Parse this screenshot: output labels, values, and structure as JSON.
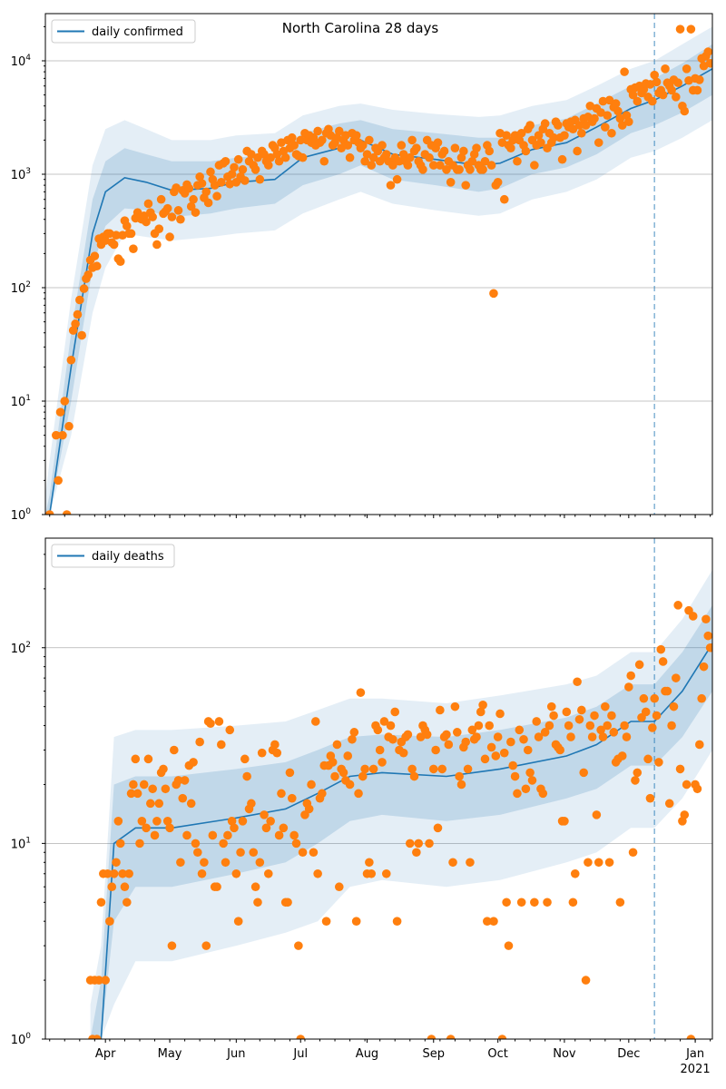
{
  "chart_data": [
    {
      "type": "scatter+line",
      "title": "North Carolina 28 days",
      "legend": {
        "label": "daily confirmed",
        "placement": "top-left"
      },
      "x_unit": "days since 2020-03-01",
      "xlim": [
        3,
        314
      ],
      "ylim_log10": [
        0,
        4.416
      ],
      "yscale": "log",
      "y_ticks": [
        {
          "base": "10",
          "exp": "0",
          "value": 1
        },
        {
          "base": "10",
          "exp": "1",
          "value": 10
        },
        {
          "base": "10",
          "exp": "2",
          "value": 100
        },
        {
          "base": "10",
          "exp": "3",
          "value": 1000
        },
        {
          "base": "10",
          "exp": "4",
          "value": 10000
        }
      ],
      "grid": "horizontal",
      "forecast_start_day": 287,
      "points": {
        "start_day": 5,
        "values": [
          1,
          null,
          null,
          5,
          2,
          8,
          5,
          10,
          1,
          6,
          23,
          42,
          48,
          58,
          78,
          38,
          98,
          120,
          130,
          175,
          150,
          190,
          155,
          270,
          240,
          280,
          260,
          300,
          300,
          250,
          240,
          290,
          180,
          170,
          290,
          390,
          350,
          300,
          300,
          220,
          410,
          460,
          410,
          400,
          430,
          380,
          550,
          460,
          420,
          300,
          240,
          330,
          600,
          450,
          470,
          500,
          280,
          420,
          700,
          760,
          480,
          400,
          720,
          680,
          810,
          750,
          520,
          600,
          460,
          800,
          950,
          830,
          620,
          700,
          560,
          1050,
          900,
          800,
          640,
          1200,
          850,
          1250,
          1300,
          950,
          820,
          1000,
          1150,
          850,
          1350,
          950,
          1100,
          880,
          1600,
          1300,
          1500,
          1200,
          1100,
          1400,
          900,
          1600,
          1500,
          1300,
          1200,
          1400,
          1800,
          1700,
          1500,
          1300,
          1900,
          1600,
          1400,
          2000,
          1700,
          2100,
          1800,
          1500,
          1450,
          2000,
          1400,
          2300,
          2000,
          2200,
          1900,
          2100,
          1800,
          2400,
          1900,
          2000,
          1300,
          2300,
          2500,
          2200,
          1800,
          1900,
          2100,
          2400,
          1700,
          2000,
          2200,
          1800,
          1400,
          2300,
          2000,
          2200,
          1900,
          1700,
          1800,
          1300,
          1500,
          2000,
          1200,
          1400,
          1700,
          1600,
          1300,
          1800,
          1400,
          1500,
          1300,
          800,
          1200,
          1400,
          900,
          1300,
          1800,
          1500,
          1300,
          1200,
          1400,
          2000,
          1600,
          1700,
          1300,
          1200,
          1100,
          1500,
          2000,
          1400,
          1800,
          1200,
          1700,
          1900,
          1200,
          1500,
          1600,
          1100,
          1300,
          850,
          1200,
          1700,
          1100,
          1100,
          1400,
          1600,
          800,
          1200,
          1100,
          1300,
          1500,
          1700,
          1200,
          1100,
          1100,
          1300,
          1800,
          1600,
          1200,
          89,
          800,
          850,
          2300,
          1900,
          600,
          2200,
          1800,
          1700,
          2000,
          2200,
          1300,
          2000,
          2300,
          1800,
          1600,
          2500,
          2700,
          2000,
          1200,
          1800,
          2200,
          1900,
          2500,
          2800,
          1700,
          2300,
          1900,
          2100,
          2900,
          2700,
          2100,
          1350,
          2200,
          2800,
          2600,
          2900,
          2500,
          3000,
          1600,
          2700,
          2300,
          3100,
          2700,
          3200,
          4000,
          2900,
          3100,
          3800,
          1900,
          3500,
          4400,
          2600,
          3300,
          4500,
          2300,
          3900,
          4200,
          3600,
          3100,
          2700,
          8000,
          3300,
          2900,
          5600,
          5000,
          5800,
          4400,
          6000,
          5200,
          5600,
          6300,
          4800,
          6200,
          4400,
          7500,
          6500,
          5200,
          5500,
          5000,
          8500,
          6400,
          6000,
          5500,
          6800,
          4800,
          6400,
          19000,
          4000,
          3600,
          8500,
          6700,
          19000,
          5500,
          7000,
          5500,
          6800,
          10500,
          9000,
          11000,
          12000,
          9500
        ]
      },
      "model": [
        [
          3,
          0.3,
          0.15,
          0.7,
          0.08,
          1.5
        ],
        [
          5,
          0.8,
          0.5,
          1.5,
          0.3,
          3
        ],
        [
          15,
          20,
          10,
          40,
          5,
          80
        ],
        [
          25,
          300,
          150,
          600,
          60,
          1200
        ],
        [
          31,
          700,
          350,
          1300,
          150,
          2500
        ],
        [
          40,
          930,
          500,
          1700,
          300,
          3000
        ],
        [
          50,
          850,
          480,
          1500,
          280,
          2500
        ],
        [
          62,
          720,
          420,
          1300,
          260,
          2000
        ],
        [
          80,
          750,
          450,
          1300,
          280,
          2000
        ],
        [
          92,
          850,
          500,
          1400,
          300,
          2200
        ],
        [
          110,
          900,
          550,
          1500,
          320,
          2300
        ],
        [
          123,
          1400,
          800,
          2300,
          450,
          3300
        ],
        [
          140,
          1700,
          1000,
          2800,
          600,
          4000
        ],
        [
          150,
          2000,
          1200,
          3000,
          700,
          4200
        ],
        [
          165,
          1500,
          900,
          2500,
          550,
          3700
        ],
        [
          185,
          1350,
          800,
          2300,
          480,
          3400
        ],
        [
          205,
          1200,
          700,
          2100,
          430,
          3200
        ],
        [
          215,
          1250,
          750,
          2100,
          450,
          3300
        ],
        [
          230,
          1650,
          1000,
          2700,
          600,
          4000
        ],
        [
          246,
          1900,
          1150,
          3100,
          700,
          4500
        ],
        [
          260,
          2600,
          1500,
          4200,
          900,
          6000
        ],
        [
          276,
          3800,
          2300,
          6000,
          1400,
          8500
        ],
        [
          287,
          4500,
          2700,
          7000,
          1600,
          10000
        ],
        [
          300,
          6000,
          3500,
          9500,
          2100,
          14000
        ],
        [
          314,
          8500,
          5000,
          14000,
          3000,
          20000
        ]
      ],
      "model_columns": [
        "day",
        "median",
        "inner_low",
        "inner_high",
        "outer_low",
        "outer_high"
      ]
    },
    {
      "type": "scatter+line",
      "legend": {
        "label": "daily deaths",
        "placement": "top-left"
      },
      "x_unit": "days since 2020-03-01",
      "xlim": [
        3,
        314
      ],
      "ylim_log10": [
        0,
        2.56
      ],
      "yscale": "log",
      "y_ticks": [
        {
          "base": "10",
          "exp": "0",
          "value": 1
        },
        {
          "base": "10",
          "exp": "1",
          "value": 10
        },
        {
          "base": "10",
          "exp": "2",
          "value": 100
        }
      ],
      "grid": "horizontal",
      "forecast_start_day": 287,
      "x_ticks": [
        {
          "day": 31,
          "label": "Apr"
        },
        {
          "day": 61,
          "label": "May"
        },
        {
          "day": 92,
          "label": "Jun"
        },
        {
          "day": 122,
          "label": "Jul"
        },
        {
          "day": 153,
          "label": "Aug"
        },
        {
          "day": 184,
          "label": "Sep"
        },
        {
          "day": 214,
          "label": "Oct"
        },
        {
          "day": 245,
          "label": "Nov"
        },
        {
          "day": 275,
          "label": "Dec"
        },
        {
          "day": 306,
          "label": "Jan",
          "sublabel": "2021"
        }
      ],
      "points": {
        "start_day": 24,
        "values": [
          2,
          1,
          2,
          1,
          2,
          5,
          7,
          2,
          7,
          4,
          6,
          7,
          8,
          13,
          10,
          7,
          6,
          5,
          7,
          18,
          20,
          27,
          18,
          10,
          13,
          20,
          12,
          27,
          16,
          19,
          11,
          13,
          16,
          23,
          24,
          19,
          13,
          12,
          3,
          30,
          20,
          21,
          8,
          17,
          21,
          11,
          25,
          16,
          26,
          10,
          9,
          33,
          7,
          8,
          3,
          42,
          41,
          11,
          6,
          6,
          42,
          32,
          10,
          8,
          11,
          38,
          13,
          12,
          7,
          4,
          9,
          13,
          27,
          22,
          15,
          16,
          9,
          6,
          5,
          8,
          29,
          14,
          12,
          7,
          13,
          30,
          32,
          29,
          11,
          18,
          12,
          5,
          5,
          23,
          17,
          11,
          10,
          3,
          1,
          9,
          14,
          16,
          15,
          20,
          9,
          42,
          7,
          17,
          18,
          25,
          4,
          25,
          28,
          26,
          22,
          32,
          6,
          24,
          23,
          21,
          28,
          20,
          34,
          37,
          4,
          18,
          59,
          22,
          24,
          7,
          8,
          7,
          24,
          40,
          38,
          30,
          26,
          42,
          7,
          35,
          40,
          34,
          47,
          4,
          30,
          33,
          29,
          35,
          36,
          10,
          24,
          22,
          9,
          10,
          35,
          40,
          38,
          36,
          10,
          1,
          24,
          30,
          12,
          48,
          24,
          35,
          36,
          32,
          1,
          8,
          50,
          37,
          22,
          20,
          31,
          33,
          24,
          8,
          38,
          34,
          35,
          40,
          47,
          51,
          27,
          4,
          40,
          31,
          4,
          28,
          35,
          46,
          1,
          29,
          5,
          3,
          33,
          25,
          22,
          18,
          38,
          5,
          34,
          19,
          30,
          23,
          21,
          5,
          42,
          35,
          19,
          18,
          37,
          5,
          40,
          50,
          45,
          32,
          31,
          30,
          13,
          13,
          47,
          40,
          35,
          5,
          7,
          67,
          43,
          48,
          23,
          2,
          8,
          40,
          35,
          45,
          14,
          8,
          38,
          35,
          50,
          40,
          8,
          45,
          37,
          26,
          27,
          5,
          28,
          40,
          35,
          63,
          72,
          9,
          21,
          23,
          82,
          44,
          55,
          47,
          27,
          17,
          39,
          55,
          45,
          26,
          98,
          85,
          60,
          60,
          16,
          40,
          50,
          70,
          165,
          24,
          13,
          14,
          20,
          155,
          1,
          145,
          20,
          19,
          32,
          55,
          80,
          140,
          115,
          100
        ]
      },
      "model": [
        [
          24,
          0.1,
          0.05,
          0.5,
          0.02,
          1.5
        ],
        [
          29,
          1,
          0.5,
          2,
          0.3,
          3
        ],
        [
          35,
          10,
          4,
          20,
          1.5,
          35
        ],
        [
          45,
          12,
          6,
          22,
          2.5,
          38
        ],
        [
          62,
          12,
          6,
          22,
          2.5,
          38
        ],
        [
          92,
          13.5,
          7,
          24,
          3,
          40
        ],
        [
          115,
          15,
          8,
          26,
          3.5,
          42
        ],
        [
          130,
          18,
          10,
          30,
          4,
          48
        ],
        [
          145,
          22,
          13,
          35,
          6,
          55
        ],
        [
          160,
          23,
          14,
          36,
          6.5,
          55
        ],
        [
          190,
          22,
          13,
          35,
          6,
          52
        ],
        [
          215,
          24,
          14,
          38,
          6.5,
          57
        ],
        [
          246,
          28,
          17,
          44,
          8,
          65
        ],
        [
          260,
          32,
          19,
          50,
          9,
          72
        ],
        [
          276,
          42,
          25,
          65,
          12,
          95
        ],
        [
          287,
          42,
          25,
          65,
          12,
          95
        ],
        [
          300,
          60,
          35,
          95,
          17,
          140
        ],
        [
          314,
          105,
          60,
          165,
          30,
          250
        ]
      ],
      "model_columns": [
        "day",
        "median",
        "inner_low",
        "inner_high",
        "outer_low",
        "outer_high"
      ]
    }
  ],
  "colors": {
    "line": "#1f77b4",
    "points": "#ff7f0e",
    "grid": "#b0b0b0"
  }
}
